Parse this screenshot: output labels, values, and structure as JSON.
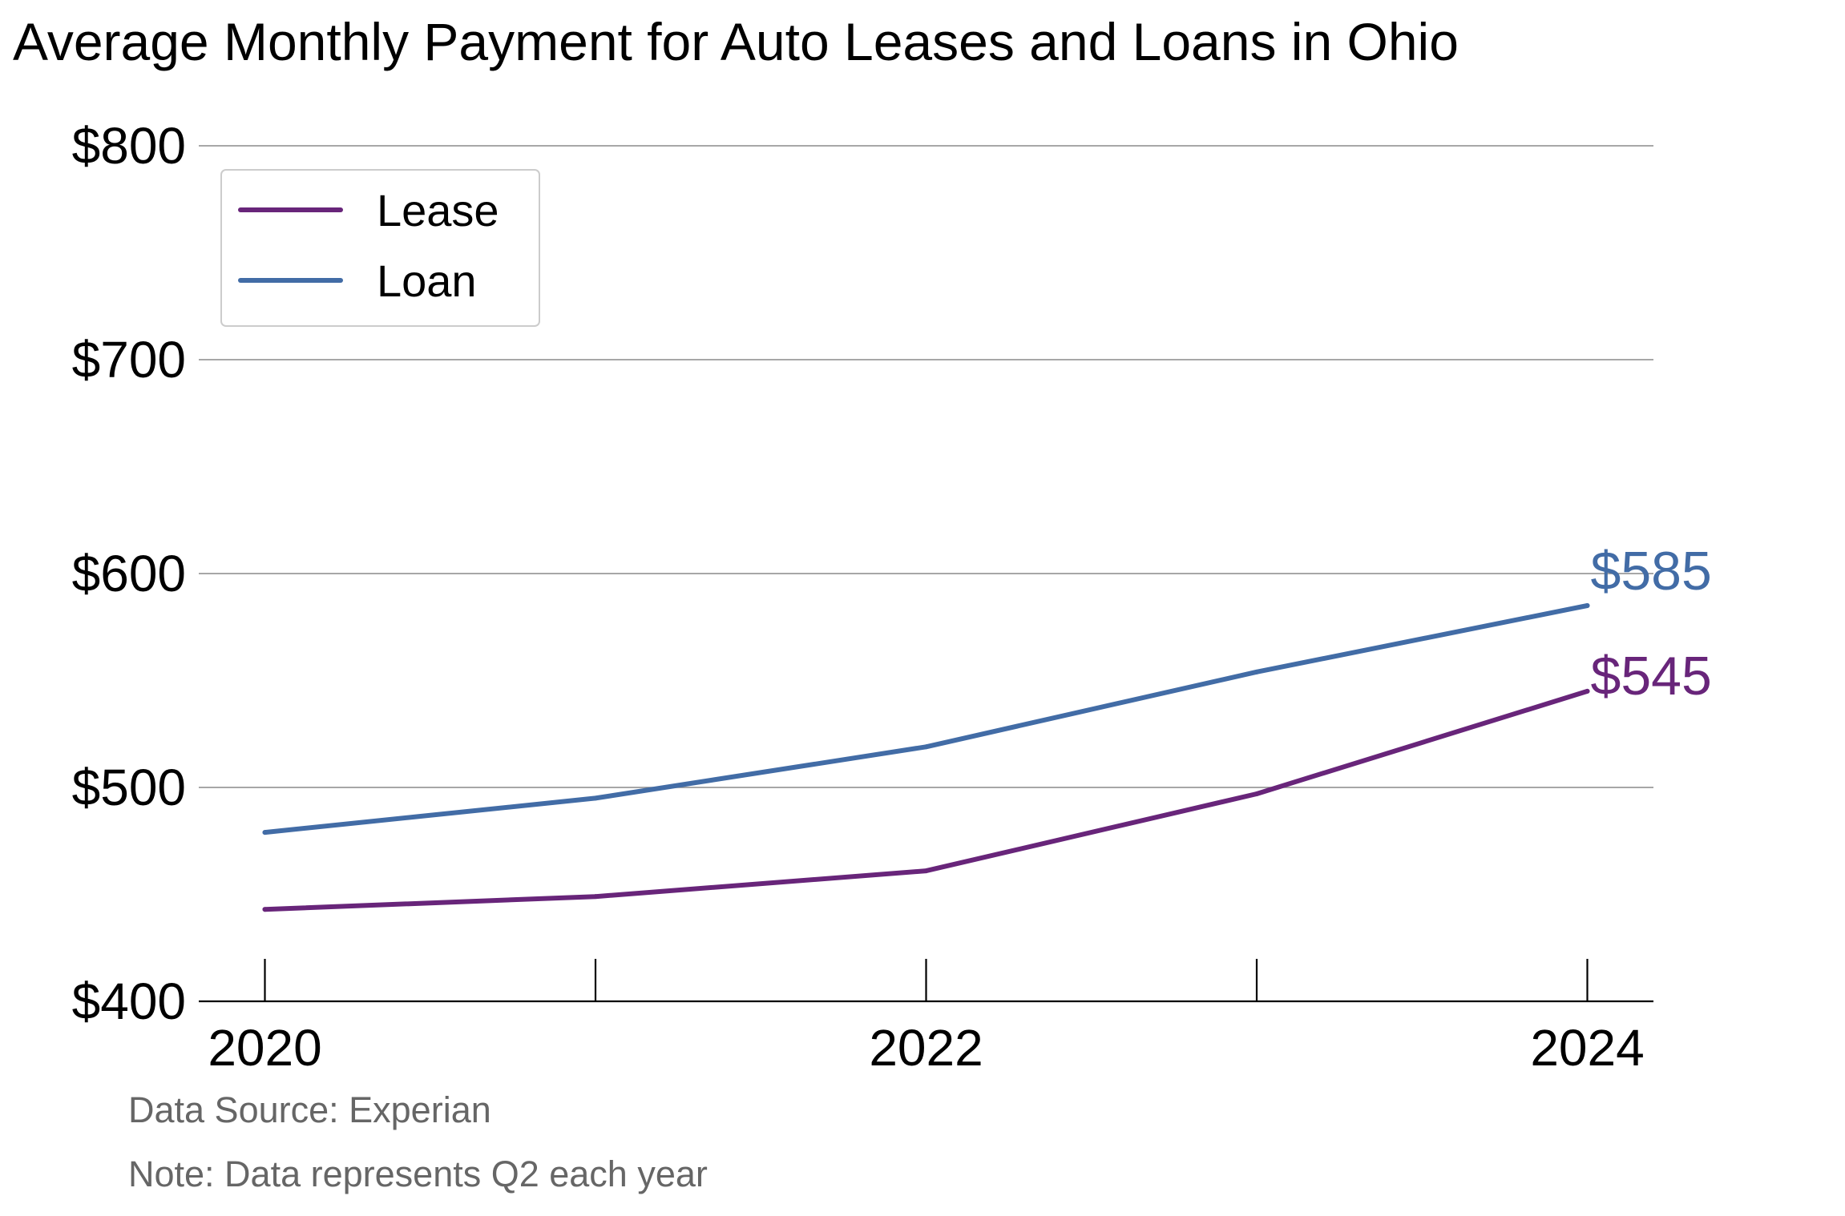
{
  "chart_data": {
    "type": "line",
    "title": "Average Monthly Payment for Auto Leases and Loans in Ohio",
    "xlabel": "",
    "ylabel": "",
    "x": [
      2020,
      2021,
      2022,
      2023,
      2024
    ],
    "x_tick_labels": [
      "2020",
      "2022",
      "2024"
    ],
    "y_tick_labels": [
      "$400",
      "$500",
      "$600",
      "$700",
      "$800"
    ],
    "y_ticks": [
      400,
      500,
      600,
      700,
      800
    ],
    "ylim": [
      400,
      800
    ],
    "xlim": [
      2019.8,
      2024.2
    ],
    "grid": "horizontal",
    "legend_position": "top-left",
    "series": [
      {
        "name": "Lease",
        "color": "#68257a",
        "values": [
          443,
          449,
          461,
          497,
          545
        ],
        "end_label": "$545"
      },
      {
        "name": "Loan",
        "color": "#426ca6",
        "values": [
          479,
          495,
          519,
          554,
          585
        ],
        "end_label": "$585"
      }
    ]
  },
  "footnotes": {
    "source": "Data Source: Experian",
    "note": "Note: Data represents Q2 each year"
  }
}
